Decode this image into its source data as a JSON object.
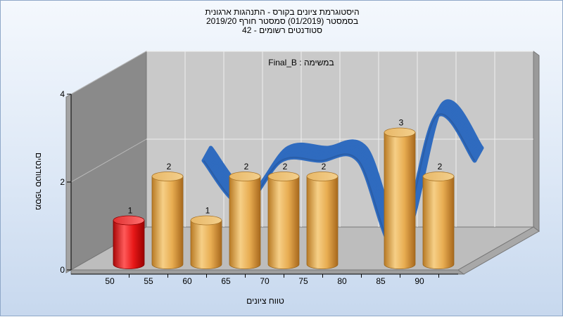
{
  "header": {
    "title_line1": "היסטוגרמת ציונים בקורס - התנהגות ארגונית",
    "title_line2": "בסמסטר  (01/2019)  סמסטר חורף 2019/20",
    "title_line3": "סטודנטים רשומים - 42"
  },
  "chart_data": {
    "type": "bar",
    "annotation": "במשימה : Final_B",
    "xlabel": "טווח ציונים",
    "ylabel": "מספר סטודנטים",
    "x_tick_labels": [
      "50",
      "55",
      "60",
      "65",
      "70",
      "75",
      "80",
      "85",
      "90"
    ],
    "y_ticks": [
      0,
      2,
      4
    ],
    "ylim": [
      0,
      4
    ],
    "categories": [
      "50",
      "55",
      "60",
      "65",
      "70",
      "75",
      "80",
      "85",
      "90"
    ],
    "values": [
      1,
      2,
      1,
      2,
      2,
      2,
      0,
      3,
      2
    ],
    "data_labels": [
      "1",
      "2",
      "1",
      "2",
      "2",
      "2",
      "",
      "3",
      "2"
    ],
    "highlight_category": "50",
    "grid": true,
    "colors": {
      "bar": "#e0a040",
      "bar_highlight": "#e01010",
      "curve": "#2f6bbf",
      "back_wall": "#c8c8c8",
      "side_wall": "#8a8a8a",
      "floor": "#bdbdbd"
    }
  }
}
